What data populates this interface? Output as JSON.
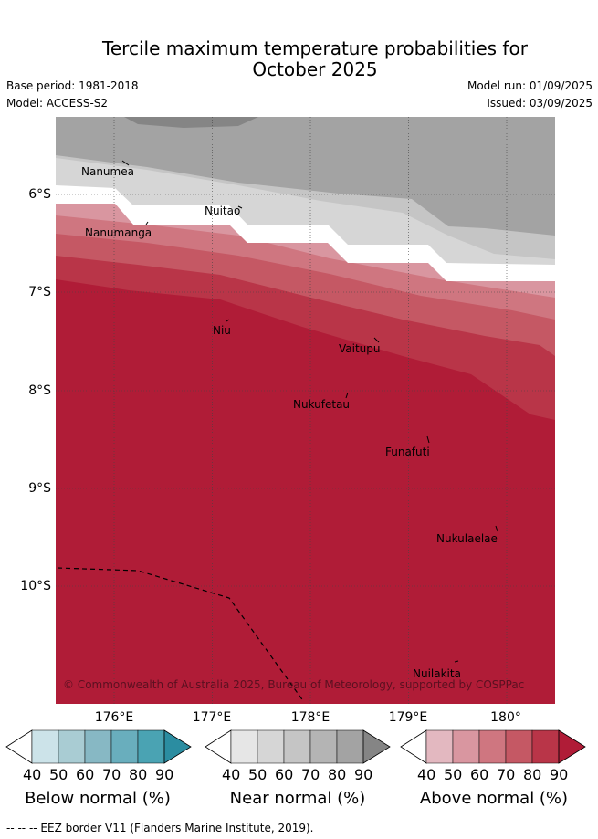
{
  "title_line1": "Tercile maximum temperature probabilities for",
  "title_line2": "October 2025",
  "base_period": "Base period: 1981-2018",
  "model": "Model: ACCESS-S2",
  "model_run": "Model run: 01/09/2025",
  "issued": "Issued: 03/09/2025",
  "latitude_ticks": [
    "6°S",
    "7°S",
    "8°S",
    "9°S",
    "10°S"
  ],
  "longitude_ticks": [
    "176°E",
    "177°E",
    "178°E",
    "179°E",
    "180°"
  ],
  "places": [
    "Nanumea",
    "Nuitao",
    "Nanumanga",
    "Niu",
    "Vaitupu",
    "Nukufetau",
    "Funafuti",
    "Nukulaelae",
    "Nuilakita"
  ],
  "copyright": "© Commonwealth of Australia 2025, Bureau of Meteorology, supported by COSPPac",
  "colorbars": [
    {
      "title": "Below normal (%)",
      "ticks": [
        "40",
        "50",
        "60",
        "70",
        "80",
        "90"
      ],
      "colors": [
        "#ffffff",
        "#cce3e9",
        "#a9ccd3",
        "#87b8c4",
        "#69aebd",
        "#4aa3b3",
        "#2b8da1"
      ]
    },
    {
      "title": "Near normal (%)",
      "ticks": [
        "40",
        "50",
        "60",
        "70",
        "80",
        "90"
      ],
      "colors": [
        "#ffffff",
        "#e6e6e6",
        "#d6d6d6",
        "#c5c5c5",
        "#b4b4b4",
        "#a3a3a3",
        "#858585"
      ]
    },
    {
      "title": "Above normal (%)",
      "ticks": [
        "40",
        "50",
        "60",
        "70",
        "80",
        "90"
      ],
      "colors": [
        "#ffffff",
        "#e3b8c0",
        "#d996a0",
        "#cf7680",
        "#c55864",
        "#b93548",
        "#b01c37"
      ]
    }
  ],
  "footnote": "--  --  -- EEZ border V11 (Flanders Marine Institute, 2019)."
}
